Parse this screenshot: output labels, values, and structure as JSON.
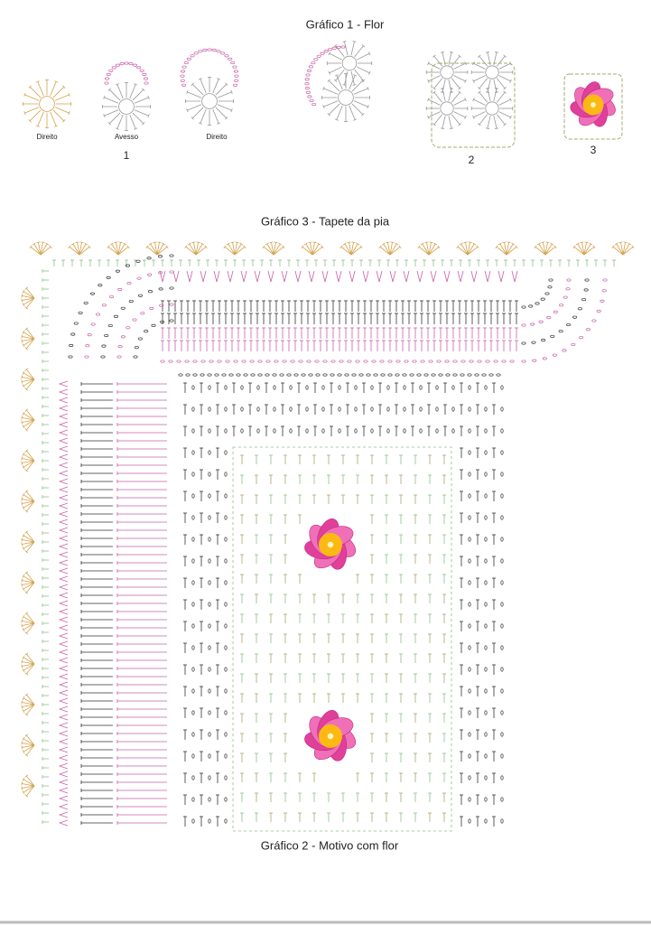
{
  "chart1": {
    "title": "Gráfico 1 - Flor",
    "labels": [
      "Direito",
      "Avesso",
      "Direito"
    ],
    "numbers": [
      "1",
      "2",
      "3"
    ]
  },
  "chart3": {
    "title": "Gráfico 3 - Tapete da pia"
  },
  "chart2": {
    "title": "Gráfico 2 - Motivo com flor"
  }
}
